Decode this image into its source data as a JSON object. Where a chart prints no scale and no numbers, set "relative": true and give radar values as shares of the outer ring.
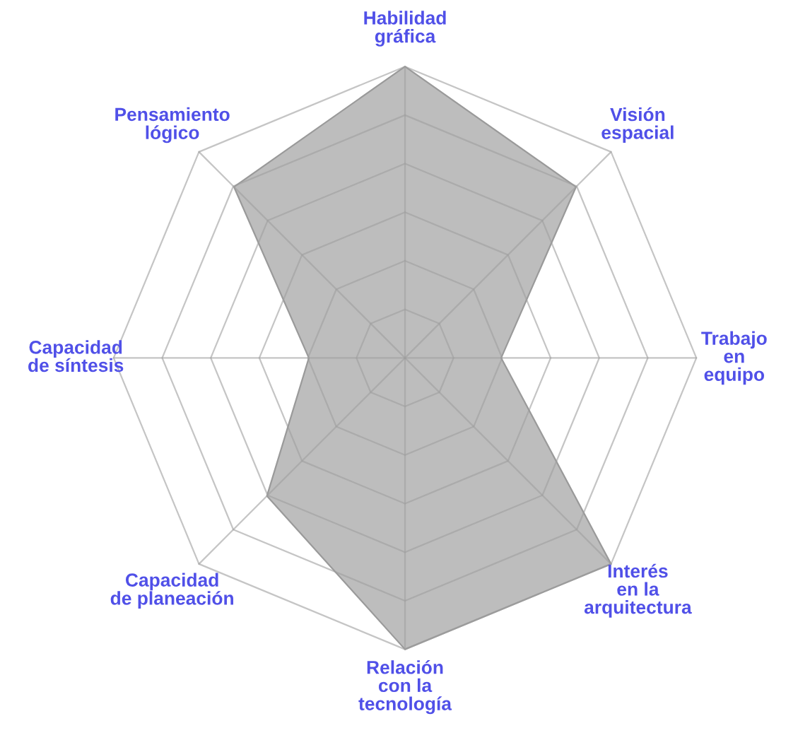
{
  "chart_data": {
    "type": "radar",
    "relative": true,
    "categories": [
      "Habilidad\ngráfica",
      "Visión\nespacial",
      "Trabajo\nen\nequipo",
      "Interés\nen la\narquitectura",
      "Relación\ncon la\ntecnología",
      "Capacidad\nde planeación",
      "Capacidad\nde síntesis",
      "Pensamiento\nlógico"
    ],
    "series": [
      {
        "color": "#bdbdbd",
        "values": [
          1,
          0.83,
          0.33,
          1,
          1,
          0.67,
          0.33,
          0.83
        ]
      }
    ]
  }
}
